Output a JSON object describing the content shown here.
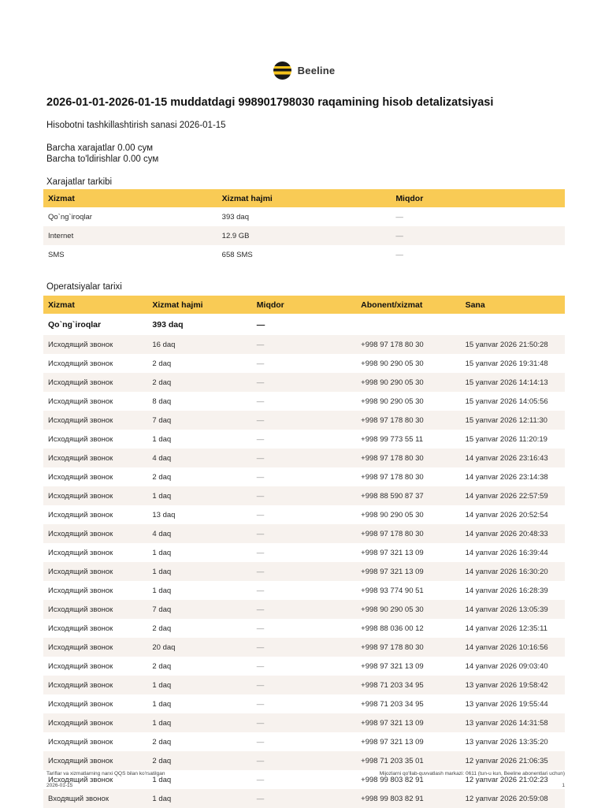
{
  "brand": "Beeline",
  "title": "2026-01-01-2026-01-15 muddatdagi 998901798030 raqamining hisob detalizatsiyasi",
  "report_date_line": "Hisobotni tashkillashtirish sanasi 2026-01-15",
  "totals": {
    "expenses": "Barcha xarajatlar 0.00 сум",
    "topups": "Barcha to'ldirishlar 0.00 сум"
  },
  "expenses": {
    "heading": "Xarajatlar tarkibi",
    "columns": [
      "Xizmat",
      "Xizmat hajmi",
      "Miqdor"
    ],
    "rows": [
      [
        "Qo`ng`iroqlar",
        "393 daq",
        "—"
      ],
      [
        "Internet",
        "12.9 GB",
        "—"
      ],
      [
        "SMS",
        "658 SMS",
        "—"
      ]
    ]
  },
  "operations": {
    "heading": "Operatsiyalar tarixi",
    "columns": [
      "Xizmat",
      "Xizmat hajmi",
      "Miqdor",
      "Abonent/xizmat",
      "Sana"
    ],
    "summary_rows": [
      [
        "Qo`ng`iroqlar",
        "393 daq",
        "—",
        "",
        ""
      ]
    ],
    "rows": [
      [
        "Исходящий звонок",
        "16 daq",
        "—",
        "+998 97 178 80 30",
        "15 yanvar 2026 21:50:28"
      ],
      [
        "Исходящий звонок",
        "2 daq",
        "—",
        "+998 90 290 05 30",
        "15 yanvar 2026 19:31:48"
      ],
      [
        "Исходящий звонок",
        "2 daq",
        "—",
        "+998 90 290 05 30",
        "15 yanvar 2026 14:14:13"
      ],
      [
        "Исходящий звонок",
        "8 daq",
        "—",
        "+998 90 290 05 30",
        "15 yanvar 2026 14:05:56"
      ],
      [
        "Исходящий звонок",
        "7 daq",
        "—",
        "+998 97 178 80 30",
        "15 yanvar 2026 12:11:30"
      ],
      [
        "Исходящий звонок",
        "1 daq",
        "—",
        "+998 99 773 55 11",
        "15 yanvar 2026 11:20:19"
      ],
      [
        "Исходящий звонок",
        "4 daq",
        "—",
        "+998 97 178 80 30",
        "14 yanvar 2026 23:16:43"
      ],
      [
        "Исходящий звонок",
        "2 daq",
        "—",
        "+998 97 178 80 30",
        "14 yanvar 2026 23:14:38"
      ],
      [
        "Исходящий звонок",
        "1 daq",
        "—",
        "+998 88 590 87 37",
        "14 yanvar 2026 22:57:59"
      ],
      [
        "Исходящий звонок",
        "13 daq",
        "—",
        "+998 90 290 05 30",
        "14 yanvar 2026 20:52:54"
      ],
      [
        "Исходящий звонок",
        "4 daq",
        "—",
        "+998 97 178 80 30",
        "14 yanvar 2026 20:48:33"
      ],
      [
        "Исходящий звонок",
        "1 daq",
        "—",
        "+998 97 321 13 09",
        "14 yanvar 2026 16:39:44"
      ],
      [
        "Исходящий звонок",
        "1 daq",
        "—",
        "+998 97 321 13 09",
        "14 yanvar 2026 16:30:20"
      ],
      [
        "Исходящий звонок",
        "1 daq",
        "—",
        "+998 93 774 90 51",
        "14 yanvar 2026 16:28:39"
      ],
      [
        "Исходящий звонок",
        "7 daq",
        "—",
        "+998 90 290 05 30",
        "14 yanvar 2026 13:05:39"
      ],
      [
        "Исходящий звонок",
        "2 daq",
        "—",
        "+998 88 036 00 12",
        "14 yanvar 2026 12:35:11"
      ],
      [
        "Исходящий звонок",
        "20 daq",
        "—",
        "+998 97 178 80 30",
        "14 yanvar 2026 10:16:56"
      ],
      [
        "Исходящий звонок",
        "2 daq",
        "—",
        "+998 97 321 13 09",
        "14 yanvar 2026 09:03:40"
      ],
      [
        "Исходящий звонок",
        "1 daq",
        "—",
        "+998 71 203 34 95",
        "13 yanvar 2026 19:58:42"
      ],
      [
        "Исходящий звонок",
        "1 daq",
        "—",
        "+998 71 203 34 95",
        "13 yanvar 2026 19:55:44"
      ],
      [
        "Исходящий звонок",
        "1 daq",
        "—",
        "+998 97 321 13 09",
        "13 yanvar 2026 14:31:58"
      ],
      [
        "Исходящий звонок",
        "2 daq",
        "—",
        "+998 97 321 13 09",
        "13 yanvar 2026 13:35:20"
      ],
      [
        "Исходящий звонок",
        "2 daq",
        "—",
        "+998 71 203 35 01",
        "12 yanvar 2026 21:06:35"
      ],
      [
        "Исходящий звонок",
        "1 daq",
        "—",
        "+998 99 803 82 91",
        "12 yanvar 2026 21:02:23"
      ],
      [
        "Входящий звонок",
        "1 daq",
        "—",
        "+998 99 803 82 91",
        "12 yanvar 2026 20:59:08"
      ]
    ]
  },
  "footer": {
    "note": "Tariflar va xizmatlarning narxi QQS bilan ko'rsatilgan",
    "date": "2026-01-15",
    "support": "Mijozlarni qo'llab-quvvatlash markazi: 0611 (tun-u kun, Beeline abonentlari uchun)",
    "page": "1"
  },
  "colors": {
    "accent": "#f9cb55",
    "row_alt": "#f7f2ee",
    "logo_yellow": "#f5c31d",
    "logo_black": "#191919"
  }
}
